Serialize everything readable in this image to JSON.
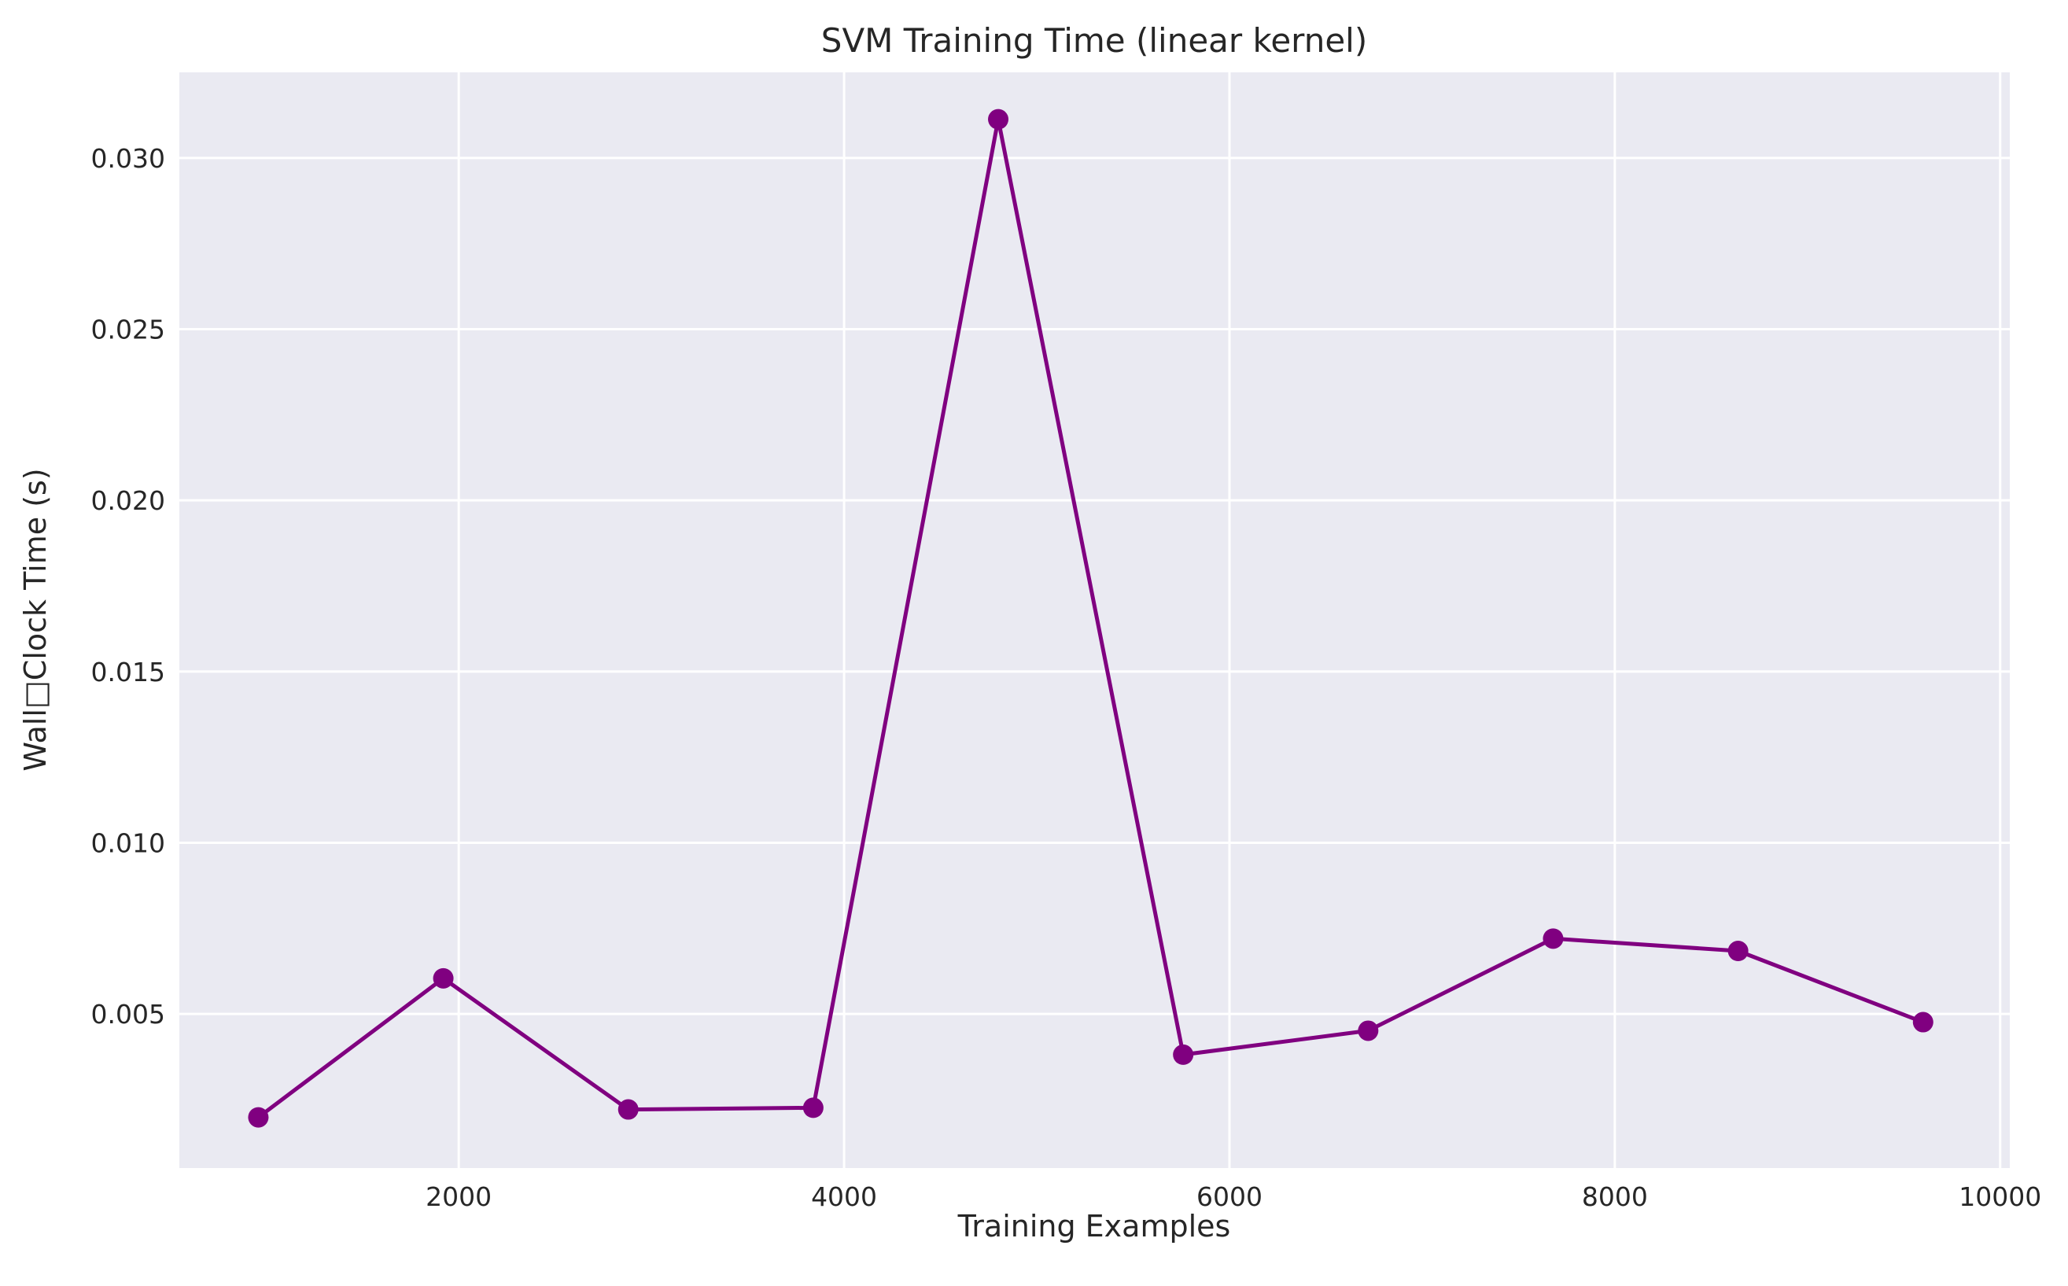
{
  "chart_data": {
    "type": "line",
    "title": "SVM Training Time (linear kernel)",
    "xlabel": "Training Examples",
    "ylabel": "Wall□Clock Time (s)",
    "xlim": [
      550,
      10050
    ],
    "ylim": [
      0.0005,
      0.0325
    ],
    "x_ticks": [
      2000,
      4000,
      6000,
      8000,
      10000
    ],
    "y_ticks": [
      0.005,
      0.01,
      0.015,
      0.02,
      0.025,
      0.03
    ],
    "x_tick_labels": [
      "2000",
      "4000",
      "6000",
      "8000",
      "10000"
    ],
    "y_tick_labels": [
      "0.005",
      "0.010",
      "0.015",
      "0.020",
      "0.025",
      "0.030"
    ],
    "grid": true,
    "colors": {
      "background": "#eaeaf2",
      "grid": "#ffffff",
      "line": "#800080"
    },
    "series": [
      {
        "x": [
          960,
          1920,
          2880,
          3840,
          4800,
          5760,
          6720,
          7680,
          8640,
          9600
        ],
        "y": [
          0.00198,
          0.00604,
          0.00221,
          0.00226,
          0.03113,
          0.00381,
          0.00451,
          0.0072,
          0.00684,
          0.00476
        ]
      }
    ]
  }
}
